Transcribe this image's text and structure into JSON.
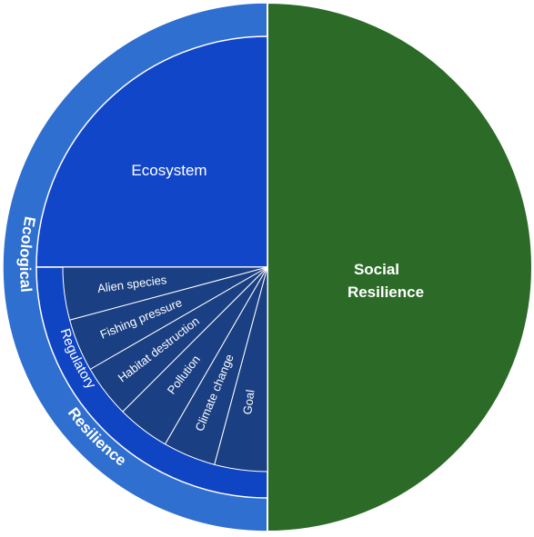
{
  "diagram": {
    "social": {
      "line1": "Social",
      "line2": "Resilience",
      "color": "#2b6a27"
    },
    "ecological": {
      "line1": "Ecological",
      "line2": "Resilience",
      "color": "#2f6fcf"
    },
    "ecosystem": {
      "label": "Ecosystem",
      "color": "#1246c8"
    },
    "regulatory": {
      "label": "Regulatory",
      "color": "#0f44c2"
    },
    "sub_color": "#1a3f82",
    "outline_color": "#ffffff",
    "sectors": [
      {
        "label": "Alien species"
      },
      {
        "label": "Fishing pressure"
      },
      {
        "label": "Habitat destruction"
      },
      {
        "label": "Pollution"
      },
      {
        "label": "Climate change"
      },
      {
        "label": "Goal"
      }
    ]
  }
}
